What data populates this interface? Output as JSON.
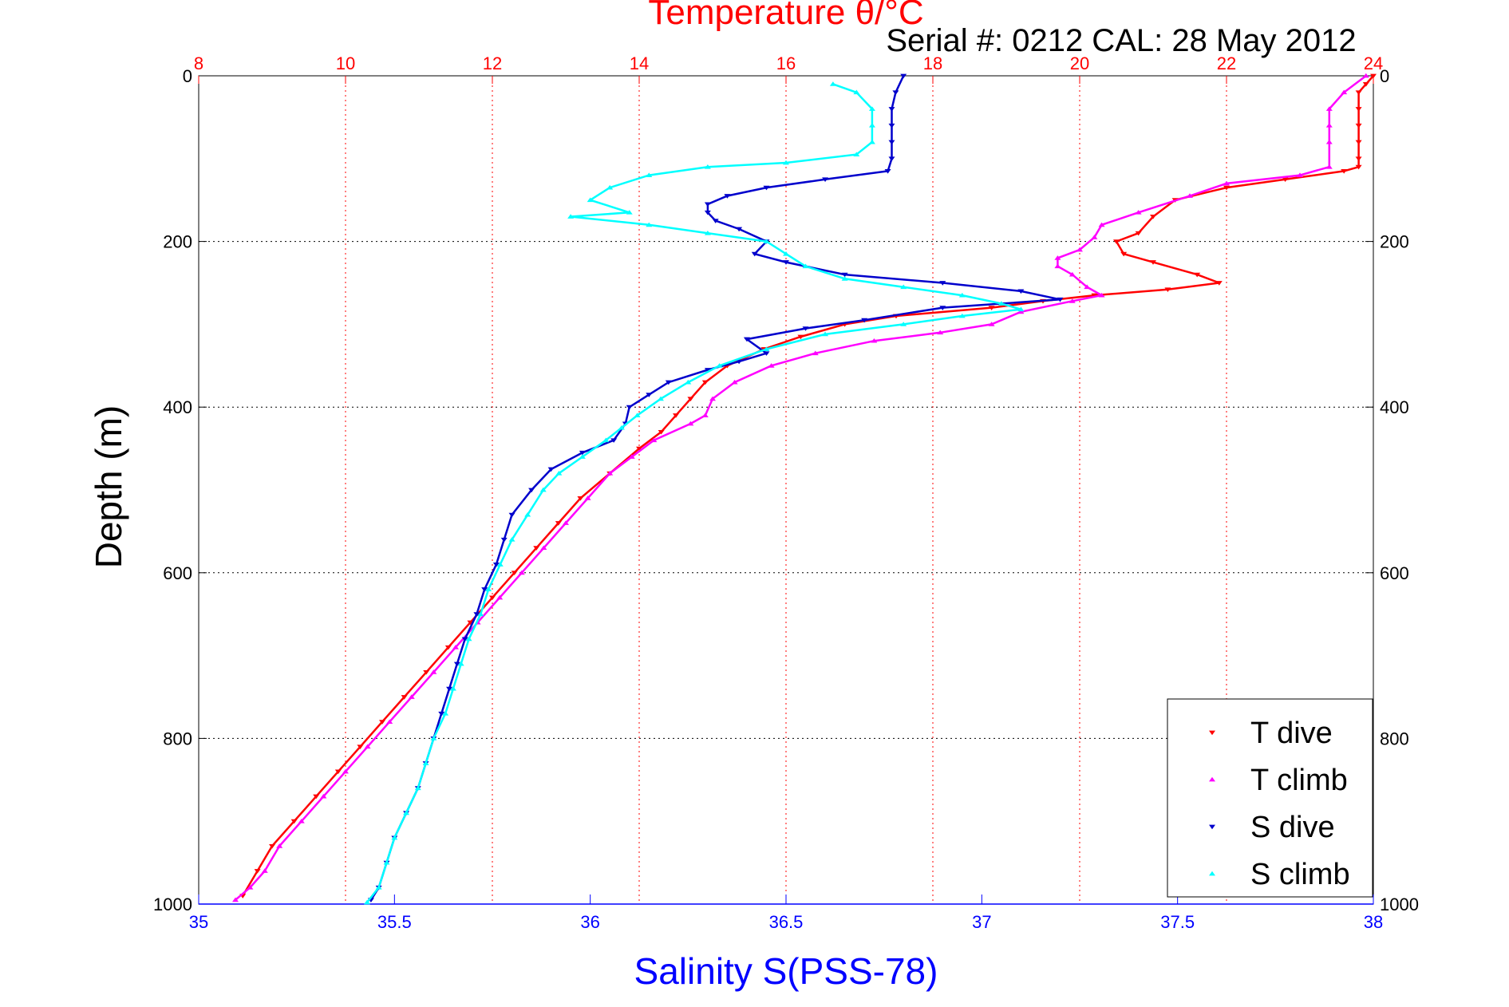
{
  "chart_data": {
    "type": "scatter",
    "title": "Temperature θ/°C",
    "subtitle": "Serial #: 0212  CAL: 28 May 2012",
    "ylabel": "Depth (m)",
    "xlabel_bottom": "Salinity S(PSS-78)",
    "xlim_bottom": [
      35,
      38
    ],
    "xlim_top": [
      8,
      24
    ],
    "ylim": [
      0,
      1000
    ],
    "y_reversed": true,
    "grid": true,
    "legend_position": "bottom-right",
    "x_ticks_bottom": [
      "35",
      "35.5",
      "36",
      "36.5",
      "37",
      "37.5",
      "38"
    ],
    "x_ticks_top": [
      "8",
      "10",
      "12",
      "14",
      "16",
      "18",
      "20",
      "22",
      "24"
    ],
    "y_ticks": [
      "0",
      "200",
      "400",
      "600",
      "800",
      "1000"
    ],
    "colors": {
      "temperature_axis": "#ff0000",
      "salinity_axis": "#0000ff",
      "t_dive": "#ff0000",
      "t_climb": "#ff00ff",
      "s_dive": "#0000cc",
      "s_climb": "#00ffff"
    },
    "series": [
      {
        "name": "T dive",
        "axis": "top",
        "marker": "triangle-down",
        "points": [
          [
            24.0,
            0
          ],
          [
            23.9,
            10
          ],
          [
            23.8,
            20
          ],
          [
            23.8,
            40
          ],
          [
            23.8,
            60
          ],
          [
            23.8,
            80
          ],
          [
            23.8,
            100
          ],
          [
            23.8,
            110
          ],
          [
            23.6,
            115
          ],
          [
            22.8,
            125
          ],
          [
            22.0,
            135
          ],
          [
            21.3,
            150
          ],
          [
            21.0,
            170
          ],
          [
            20.8,
            190
          ],
          [
            20.5,
            200
          ],
          [
            20.6,
            215
          ],
          [
            21.0,
            225
          ],
          [
            21.6,
            240
          ],
          [
            21.9,
            250
          ],
          [
            21.2,
            258
          ],
          [
            20.2,
            265
          ],
          [
            19.5,
            272
          ],
          [
            18.8,
            280
          ],
          [
            17.5,
            290
          ],
          [
            16.8,
            300
          ],
          [
            16.2,
            315
          ],
          [
            15.7,
            330
          ],
          [
            15.2,
            350
          ],
          [
            14.9,
            370
          ],
          [
            14.7,
            390
          ],
          [
            14.5,
            410
          ],
          [
            14.3,
            430
          ],
          [
            14.0,
            450
          ],
          [
            13.6,
            480
          ],
          [
            13.2,
            510
          ],
          [
            12.9,
            540
          ],
          [
            12.6,
            570
          ],
          [
            12.3,
            600
          ],
          [
            12.0,
            630
          ],
          [
            11.7,
            660
          ],
          [
            11.4,
            690
          ],
          [
            11.1,
            720
          ],
          [
            10.8,
            750
          ],
          [
            10.5,
            780
          ],
          [
            10.2,
            810
          ],
          [
            9.9,
            840
          ],
          [
            9.6,
            870
          ],
          [
            9.3,
            900
          ],
          [
            9.0,
            930
          ],
          [
            8.8,
            960
          ],
          [
            8.6,
            990
          ]
        ]
      },
      {
        "name": "T climb",
        "axis": "top",
        "marker": "triangle-up",
        "points": [
          [
            23.9,
            0
          ],
          [
            23.6,
            20
          ],
          [
            23.4,
            40
          ],
          [
            23.4,
            60
          ],
          [
            23.4,
            80
          ],
          [
            23.4,
            110
          ],
          [
            23.0,
            120
          ],
          [
            22.0,
            130
          ],
          [
            21.5,
            145
          ],
          [
            20.8,
            165
          ],
          [
            20.3,
            180
          ],
          [
            20.2,
            195
          ],
          [
            20.0,
            210
          ],
          [
            19.7,
            220
          ],
          [
            19.7,
            230
          ],
          [
            19.9,
            240
          ],
          [
            20.1,
            255
          ],
          [
            20.3,
            265
          ],
          [
            19.9,
            272
          ],
          [
            19.2,
            285
          ],
          [
            18.8,
            300
          ],
          [
            18.1,
            310
          ],
          [
            17.2,
            320
          ],
          [
            16.4,
            335
          ],
          [
            15.8,
            350
          ],
          [
            15.3,
            370
          ],
          [
            15.0,
            390
          ],
          [
            14.9,
            410
          ],
          [
            14.7,
            420
          ],
          [
            14.2,
            440
          ],
          [
            13.9,
            460
          ],
          [
            13.6,
            480
          ],
          [
            13.3,
            510
          ],
          [
            13.0,
            540
          ],
          [
            12.7,
            570
          ],
          [
            12.4,
            600
          ],
          [
            12.1,
            630
          ],
          [
            11.8,
            660
          ],
          [
            11.5,
            690
          ],
          [
            11.2,
            720
          ],
          [
            10.9,
            750
          ],
          [
            10.6,
            780
          ],
          [
            10.3,
            810
          ],
          [
            10.0,
            840
          ],
          [
            9.7,
            870
          ],
          [
            9.4,
            900
          ],
          [
            9.1,
            930
          ],
          [
            8.9,
            960
          ],
          [
            8.7,
            980
          ],
          [
            8.5,
            995
          ]
        ]
      },
      {
        "name": "S dive",
        "axis": "bottom",
        "marker": "triangle-down",
        "points": [
          [
            36.8,
            0
          ],
          [
            36.78,
            20
          ],
          [
            36.77,
            40
          ],
          [
            36.77,
            60
          ],
          [
            36.77,
            80
          ],
          [
            36.77,
            100
          ],
          [
            36.76,
            115
          ],
          [
            36.6,
            125
          ],
          [
            36.45,
            135
          ],
          [
            36.35,
            145
          ],
          [
            36.3,
            155
          ],
          [
            36.3,
            165
          ],
          [
            36.32,
            175
          ],
          [
            36.38,
            185
          ],
          [
            36.45,
            200
          ],
          [
            36.42,
            215
          ],
          [
            36.5,
            225
          ],
          [
            36.65,
            240
          ],
          [
            36.9,
            250
          ],
          [
            37.1,
            260
          ],
          [
            37.2,
            270
          ],
          [
            36.9,
            280
          ],
          [
            36.7,
            295
          ],
          [
            36.55,
            305
          ],
          [
            36.4,
            318
          ],
          [
            36.45,
            335
          ],
          [
            36.38,
            345
          ],
          [
            36.3,
            355
          ],
          [
            36.2,
            370
          ],
          [
            36.15,
            385
          ],
          [
            36.1,
            400
          ],
          [
            36.09,
            420
          ],
          [
            36.06,
            440
          ],
          [
            35.98,
            455
          ],
          [
            35.9,
            475
          ],
          [
            35.85,
            500
          ],
          [
            35.8,
            530
          ],
          [
            35.78,
            560
          ],
          [
            35.76,
            590
          ],
          [
            35.73,
            620
          ],
          [
            35.71,
            650
          ],
          [
            35.68,
            680
          ],
          [
            35.66,
            710
          ],
          [
            35.64,
            740
          ],
          [
            35.62,
            770
          ],
          [
            35.6,
            800
          ],
          [
            35.58,
            830
          ],
          [
            35.56,
            860
          ],
          [
            35.53,
            890
          ],
          [
            35.5,
            920
          ],
          [
            35.48,
            950
          ],
          [
            35.46,
            980
          ],
          [
            35.44,
            995
          ]
        ]
      },
      {
        "name": "S climb",
        "axis": "bottom",
        "marker": "triangle-up",
        "points": [
          [
            36.62,
            10
          ],
          [
            36.68,
            20
          ],
          [
            36.72,
            40
          ],
          [
            36.72,
            60
          ],
          [
            36.72,
            80
          ],
          [
            36.68,
            95
          ],
          [
            36.5,
            105
          ],
          [
            36.3,
            110
          ],
          [
            36.15,
            120
          ],
          [
            36.05,
            135
          ],
          [
            36.0,
            150
          ],
          [
            36.1,
            165
          ],
          [
            35.95,
            170
          ],
          [
            36.15,
            180
          ],
          [
            36.3,
            190
          ],
          [
            36.45,
            200
          ],
          [
            36.5,
            215
          ],
          [
            36.55,
            230
          ],
          [
            36.65,
            245
          ],
          [
            36.8,
            255
          ],
          [
            36.95,
            265
          ],
          [
            37.05,
            275
          ],
          [
            37.1,
            282
          ],
          [
            36.95,
            290
          ],
          [
            36.8,
            300
          ],
          [
            36.6,
            312
          ],
          [
            36.45,
            330
          ],
          [
            36.33,
            350
          ],
          [
            36.25,
            370
          ],
          [
            36.18,
            390
          ],
          [
            36.12,
            410
          ],
          [
            36.08,
            425
          ],
          [
            36.04,
            440
          ],
          [
            35.98,
            460
          ],
          [
            35.92,
            480
          ],
          [
            35.88,
            500
          ],
          [
            35.84,
            530
          ],
          [
            35.8,
            560
          ],
          [
            35.77,
            590
          ],
          [
            35.74,
            620
          ],
          [
            35.72,
            650
          ],
          [
            35.69,
            680
          ],
          [
            35.67,
            710
          ],
          [
            35.65,
            740
          ],
          [
            35.63,
            770
          ],
          [
            35.6,
            800
          ],
          [
            35.58,
            830
          ],
          [
            35.56,
            860
          ],
          [
            35.53,
            890
          ],
          [
            35.5,
            920
          ],
          [
            35.48,
            950
          ],
          [
            35.46,
            980
          ],
          [
            35.43,
            998
          ]
        ]
      }
    ]
  }
}
